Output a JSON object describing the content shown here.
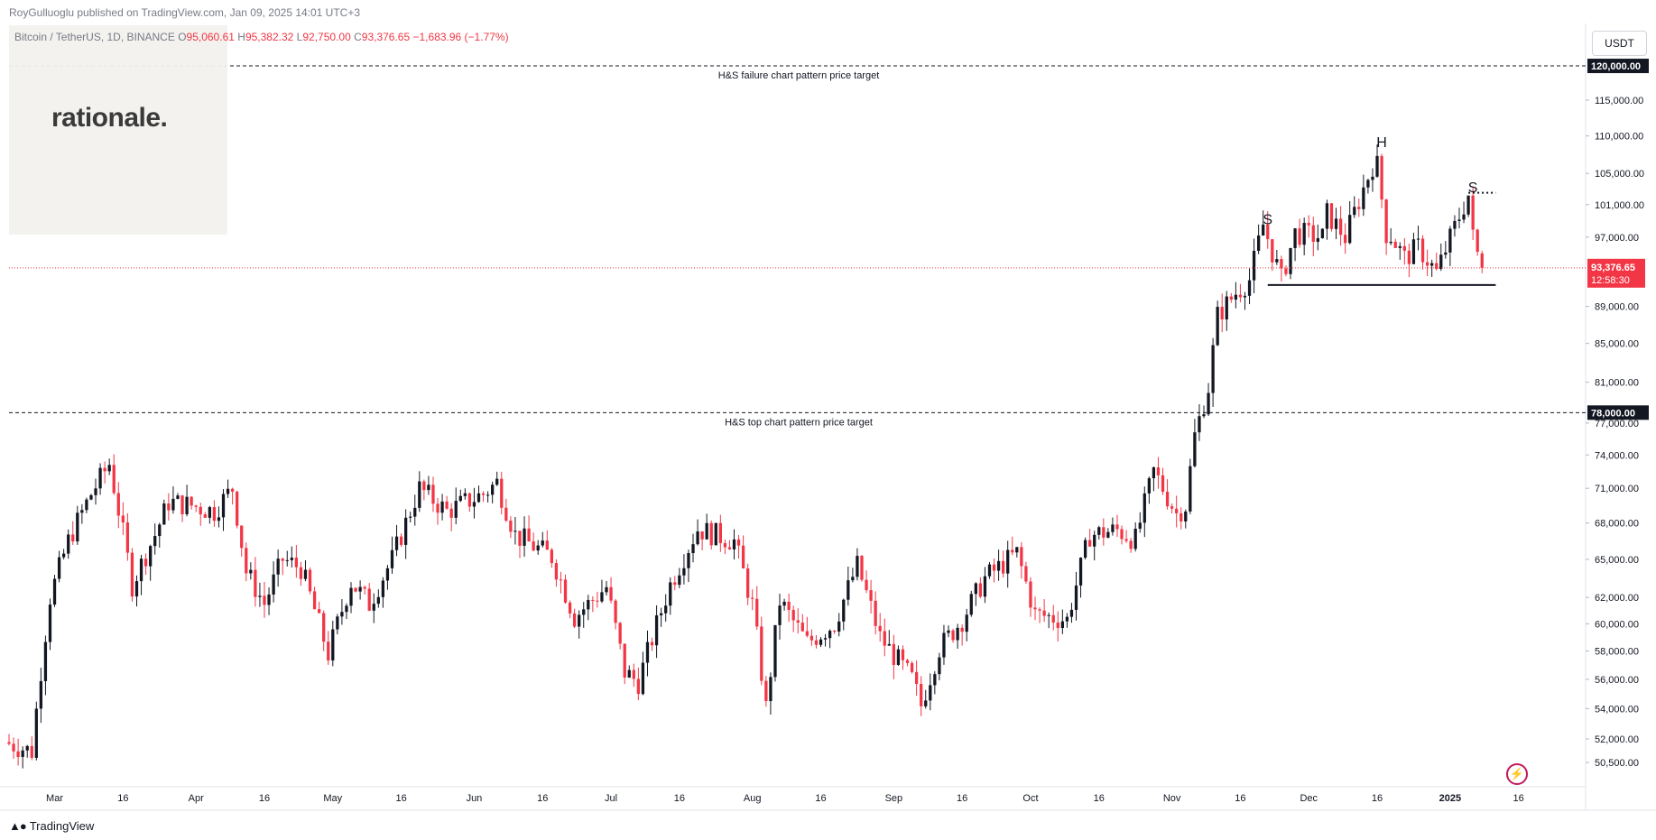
{
  "header": {
    "published": "RoyGulluoglu published on TradingView.com, Jan 09, 2025 14:01 UTC+3"
  },
  "legend": {
    "symbol": "Bitcoin / TetherUS, 1D, BINANCE",
    "open_label": "O",
    "open": "95,060.61",
    "high_label": "H",
    "high": "95,382.32",
    "low_label": "L",
    "low": "92,750.00",
    "close_label": "C",
    "close": "93,376.65",
    "change": "−1,683.96 (−1.77%)"
  },
  "logo": {
    "text": "rationale."
  },
  "unit_button": "USDT",
  "footer": {
    "brand": "TradingView",
    "brand_icon": "tradingview-logo-icon"
  },
  "colors": {
    "up": "#131722",
    "down": "#f23645",
    "price_line": "#f23645",
    "axis_text": "#787b86"
  },
  "chart_data": {
    "type": "candlestick",
    "title": "Bitcoin / TetherUS, 1D, BINANCE",
    "ylim": [
      49000,
      126500
    ],
    "y_scale": "log",
    "y_ticks": [
      "115,000.00",
      "110,000.00",
      "105,000.00",
      "101,000.00",
      "97,000.00",
      "89,000.00",
      "85,000.00",
      "81,000.00",
      "77,000.00",
      "74,000.00",
      "71,000.00",
      "68,000.00",
      "65,000.00",
      "62,000.00",
      "60,000.00",
      "58,000.00",
      "56,000.00",
      "54,000.00",
      "52,000.00",
      "50,500.00"
    ],
    "y_tick_values": [
      115000,
      110000,
      105000,
      101000,
      97000,
      89000,
      85000,
      81000,
      77000,
      74000,
      71000,
      68000,
      65000,
      62000,
      60000,
      58000,
      56000,
      54000,
      52000,
      50500
    ],
    "x_labels": [
      "Mar",
      "16",
      "Apr",
      "16",
      "May",
      "16",
      "Jun",
      "16",
      "Jul",
      "16",
      "Aug",
      "16",
      "Sep",
      "16",
      "Oct",
      "16",
      "Nov",
      "16",
      "Dec",
      "16",
      "2025",
      "16"
    ],
    "x_label_dates": [
      "2024-03-01",
      "2024-03-16",
      "2024-04-01",
      "2024-04-16",
      "2024-05-01",
      "2024-05-16",
      "2024-06-01",
      "2024-06-16",
      "2024-07-01",
      "2024-07-16",
      "2024-08-01",
      "2024-08-16",
      "2024-09-01",
      "2024-09-16",
      "2024-10-01",
      "2024-10-16",
      "2024-11-01",
      "2024-11-16",
      "2024-12-01",
      "2024-12-16",
      "2025-01-01",
      "2025-01-16"
    ],
    "current_price": {
      "value": 93376.65,
      "label": "93,376.65",
      "countdown": "12:58:30"
    },
    "levels": [
      {
        "value": 120000,
        "label": "120,000.00",
        "text": "H&S failure chart pattern price target",
        "style": "dashed"
      },
      {
        "value": 78000,
        "label": "78,000.00",
        "text": "H&S top chart pattern price target",
        "style": "dashed"
      }
    ],
    "neckline": {
      "value": 91400,
      "from": "2024-11-22",
      "to": "2025-01-11"
    },
    "right_shoulder_line": {
      "value": 102500,
      "from": "2025-01-05",
      "to": "2025-01-11"
    },
    "pattern_labels": [
      {
        "text": "S",
        "date": "2024-11-22",
        "price": 98600
      },
      {
        "text": "H",
        "date": "2024-12-17",
        "price": 108500
      },
      {
        "text": "S",
        "date": "2025-01-06",
        "price": 102600
      }
    ],
    "anchor": [
      [
        "2024-02-20",
        51800
      ],
      [
        "2024-02-26",
        51200
      ],
      [
        "2024-03-01",
        62000
      ],
      [
        "2024-03-05",
        66500
      ],
      [
        "2024-03-10",
        70500
      ],
      [
        "2024-03-14",
        73200
      ],
      [
        "2024-03-19",
        63000
      ],
      [
        "2024-03-24",
        67000
      ],
      [
        "2024-03-27",
        69800
      ],
      [
        "2024-04-01",
        69500
      ],
      [
        "2024-04-06",
        69000
      ],
      [
        "2024-04-10",
        71000
      ],
      [
        "2024-04-13",
        64000
      ],
      [
        "2024-04-17",
        61500
      ],
      [
        "2024-04-21",
        65000
      ],
      [
        "2024-04-25",
        64300
      ],
      [
        "2024-05-01",
        57800
      ],
      [
        "2024-05-06",
        63200
      ],
      [
        "2024-05-10",
        61500
      ],
      [
        "2024-05-15",
        65000
      ],
      [
        "2024-05-21",
        71000
      ],
      [
        "2024-05-27",
        69000
      ],
      [
        "2024-06-04",
        70500
      ],
      [
        "2024-06-07",
        71500
      ],
      [
        "2024-06-11",
        67000
      ],
      [
        "2024-06-19",
        65200
      ],
      [
        "2024-06-24",
        60500
      ],
      [
        "2024-07-01",
        62800
      ],
      [
        "2024-07-05",
        56500
      ],
      [
        "2024-07-08",
        55800
      ],
      [
        "2024-07-15",
        63000
      ],
      [
        "2024-07-21",
        67500
      ],
      [
        "2024-07-29",
        66500
      ],
      [
        "2024-08-02",
        61400
      ],
      [
        "2024-08-05",
        54000
      ],
      [
        "2024-08-08",
        61700
      ],
      [
        "2024-08-14",
        58600
      ],
      [
        "2024-08-20",
        60000
      ],
      [
        "2024-08-25",
        64500
      ],
      [
        "2024-08-30",
        59000
      ],
      [
        "2024-09-06",
        56000
      ],
      [
        "2024-09-08",
        54200
      ],
      [
        "2024-09-12",
        58200
      ],
      [
        "2024-09-17",
        60300
      ],
      [
        "2024-09-22",
        63500
      ],
      [
        "2024-09-29",
        65500
      ],
      [
        "2024-10-03",
        60700
      ],
      [
        "2024-10-10",
        60300
      ],
      [
        "2024-10-15",
        67000
      ],
      [
        "2024-10-21",
        67400
      ],
      [
        "2024-10-25",
        66600
      ],
      [
        "2024-10-29",
        72500
      ],
      [
        "2024-11-03",
        68800
      ],
      [
        "2024-11-05",
        69500
      ],
      [
        "2024-11-07",
        75800
      ],
      [
        "2024-11-10",
        80500
      ],
      [
        "2024-11-12",
        88000
      ],
      [
        "2024-11-16",
        90500
      ],
      [
        "2024-11-19",
        92000
      ],
      [
        "2024-11-22",
        98500
      ],
      [
        "2024-11-26",
        92000
      ],
      [
        "2024-11-29",
        97500
      ],
      [
        "2024-12-05",
        97000
      ],
      [
        "2024-12-06",
        99900
      ],
      [
        "2024-12-10",
        97000
      ],
      [
        "2024-12-13",
        101500
      ],
      [
        "2024-12-16",
        106100
      ],
      [
        "2024-12-17",
        106000
      ],
      [
        "2024-12-19",
        97500
      ],
      [
        "2024-12-20",
        97200
      ],
      [
        "2024-12-23",
        94500
      ],
      [
        "2024-12-26",
        95800
      ],
      [
        "2024-12-30",
        92800
      ],
      [
        "2025-01-03",
        98200
      ],
      [
        "2025-01-06",
        102200
      ],
      [
        "2025-01-07",
        96900
      ],
      [
        "2025-01-08",
        95000
      ],
      [
        "2025-01-09",
        93376
      ]
    ]
  }
}
